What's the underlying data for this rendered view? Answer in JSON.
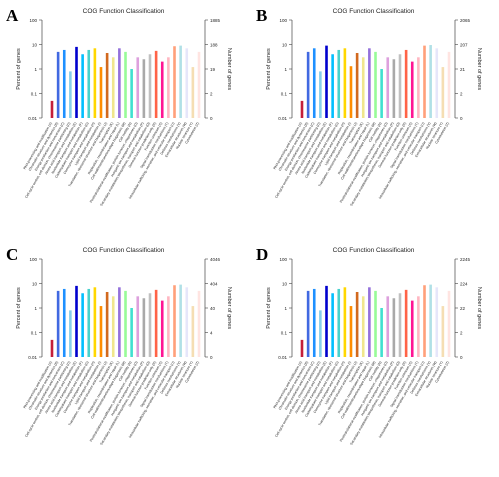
{
  "panels": [
    {
      "letter": "A"
    },
    {
      "letter": "B"
    },
    {
      "letter": "C"
    },
    {
      "letter": "D"
    }
  ],
  "chart_data": [
    {
      "type": "bar",
      "title": "COG Function Classification",
      "ylabel": "Percent of genes",
      "y2label": "Number of genes",
      "yscale": "log",
      "ylim": [
        0.01,
        100
      ],
      "yticks": [
        "0.01",
        "0.1",
        "1",
        "10",
        "100"
      ],
      "y2ticks": [
        "0",
        "2",
        "19",
        "188",
        "1885"
      ],
      "categories": [
        "RNA processing and modification (A)",
        "Chromatin structure and dynamics (B)",
        "Energy production and conversion (C)",
        "Cell cycle control, cell division, chromosome partitioning (D)",
        "Amino acid transport and metabolism (E)",
        "Nucleotide transport and metabolism (F)",
        "Carbohydrate transport and metabolism (G)",
        "Coenzyme transport and metabolism (H)",
        "Lipid transport and metabolism (I)",
        "Translation, ribosomal structure and biogenesis (J)",
        "Transcription (K)",
        "Replication, recombination and repair (L)",
        "Cell wall/membrane/envelope biogenesis (M)",
        "Cell motility (N)",
        "Posttranslational modification, protein turnover, chaperones (O)",
        "Inorganic ion transport and metabolism (P)",
        "Secondary metabolites biosynthesis, transport and catabolism (Q)",
        "General function prediction only (R)",
        "Function unknown (S)",
        "Signal transduction mechanisms (T)",
        "Intracellular trafficking, secretion, and vesicular transport (U)",
        "Defense mechanisms (V)",
        "Extracellular structures (W)",
        "Nuclear structure (Y)",
        "Cytoskeleton (Z)"
      ],
      "values": [
        0.05,
        5,
        6,
        0.8,
        8,
        4,
        6,
        7,
        1.2,
        4.5,
        3,
        7,
        5,
        1,
        3,
        2.5,
        4,
        5.5,
        2,
        3,
        8.5,
        9,
        7,
        1.2,
        5
      ]
    },
    {
      "type": "bar",
      "title": "COG Function Classification",
      "ylabel": "Percent of genes",
      "y2label": "Number of genes",
      "yscale": "log",
      "ylim": [
        0.01,
        100
      ],
      "yticks": [
        "0.01",
        "0.1",
        "1",
        "10",
        "100"
      ],
      "y2ticks": [
        "0",
        "2",
        "21",
        "207",
        "2065"
      ],
      "categories": [
        "RNA processing and modification (A)",
        "Chromatin structure and dynamics (B)",
        "Energy production and conversion (C)",
        "Cell cycle control, cell division, chromosome partitioning (D)",
        "Amino acid transport and metabolism (E)",
        "Nucleotide transport and metabolism (F)",
        "Carbohydrate transport and metabolism (G)",
        "Coenzyme transport and metabolism (H)",
        "Lipid transport and metabolism (I)",
        "Translation, ribosomal structure and biogenesis (J)",
        "Transcription (K)",
        "Replication, recombination and repair (L)",
        "Cell wall/membrane/envelope biogenesis (M)",
        "Cell motility (N)",
        "Posttranslational modification, protein turnover, chaperones (O)",
        "Inorganic ion transport and metabolism (P)",
        "Secondary metabolites biosynthesis, transport and catabolism (Q)",
        "General function prediction only (R)",
        "Function unknown (S)",
        "Signal transduction mechanisms (T)",
        "Intracellular trafficking, secretion, and vesicular transport (U)",
        "Defense mechanisms (V)",
        "Extracellular structures (W)",
        "Nuclear structure (Y)",
        "Cytoskeleton (Z)"
      ],
      "values": [
        0.05,
        5,
        7,
        0.8,
        9,
        4,
        6,
        7,
        1.3,
        4.5,
        3,
        7,
        5,
        1,
        3,
        2.5,
        4,
        6,
        2,
        3,
        9,
        9.5,
        7,
        1.2,
        5
      ]
    },
    {
      "type": "bar",
      "title": "COG Function Classification",
      "ylabel": "Percent of genes",
      "y2label": "Number of genes",
      "yscale": "log",
      "ylim": [
        0.01,
        100
      ],
      "yticks": [
        "0.01",
        "0.1",
        "1",
        "10",
        "100"
      ],
      "y2ticks": [
        "0",
        "4",
        "40",
        "404",
        "4046"
      ],
      "categories": [
        "RNA processing and modification (A)",
        "Chromatin structure and dynamics (B)",
        "Energy production and conversion (C)",
        "Cell cycle control, cell division, chromosome partitioning (D)",
        "Amino acid transport and metabolism (E)",
        "Nucleotide transport and metabolism (F)",
        "Carbohydrate transport and metabolism (G)",
        "Coenzyme transport and metabolism (H)",
        "Lipid transport and metabolism (I)",
        "Translation, ribosomal structure and biogenesis (J)",
        "Transcription (K)",
        "Replication, recombination and repair (L)",
        "Cell wall/membrane/envelope biogenesis (M)",
        "Cell motility (N)",
        "Posttranslational modification, protein turnover, chaperones (O)",
        "Inorganic ion transport and metabolism (P)",
        "Secondary metabolites biosynthesis, transport and catabolism (Q)",
        "General function prediction only (R)",
        "Function unknown (S)",
        "Signal transduction mechanisms (T)",
        "Intracellular trafficking, secretion, and vesicular transport (U)",
        "Defense mechanisms (V)",
        "Extracellular structures (W)",
        "Nuclear structure (Y)",
        "Cytoskeleton (Z)"
      ],
      "values": [
        0.05,
        5,
        6,
        0.8,
        8,
        4,
        6,
        7,
        1.2,
        4.5,
        3,
        7,
        5,
        1,
        3,
        2.5,
        4,
        5.5,
        2,
        3,
        8.5,
        9,
        7,
        1.2,
        5
      ]
    },
    {
      "type": "bar",
      "title": "COG Function Classification",
      "ylabel": "Percent of genes",
      "y2label": "Number of genes",
      "yscale": "log",
      "ylim": [
        0.01,
        100
      ],
      "yticks": [
        "0.01",
        "0.1",
        "1",
        "10",
        "100"
      ],
      "y2ticks": [
        "0",
        "2",
        "22",
        "224",
        "2245"
      ],
      "categories": [
        "RNA processing and modification (A)",
        "Chromatin structure and dynamics (B)",
        "Energy production and conversion (C)",
        "Cell cycle control, cell division, chromosome partitioning (D)",
        "Amino acid transport and metabolism (E)",
        "Nucleotide transport and metabolism (F)",
        "Carbohydrate transport and metabolism (G)",
        "Coenzyme transport and metabolism (H)",
        "Lipid transport and metabolism (I)",
        "Translation, ribosomal structure and biogenesis (J)",
        "Transcription (K)",
        "Replication, recombination and repair (L)",
        "Cell wall/membrane/envelope biogenesis (M)",
        "Cell motility (N)",
        "Posttranslational modification, protein turnover, chaperones (O)",
        "Inorganic ion transport and metabolism (P)",
        "Secondary metabolites biosynthesis, transport and catabolism (Q)",
        "General function prediction only (R)",
        "Function unknown (S)",
        "Signal transduction mechanisms (T)",
        "Intracellular trafficking, secretion, and vesicular transport (U)",
        "Defense mechanisms (V)",
        "Extracellular structures (W)",
        "Nuclear structure (Y)",
        "Cytoskeleton (Z)"
      ],
      "values": [
        0.05,
        5,
        6,
        0.8,
        8,
        4,
        6,
        7,
        1.2,
        4.5,
        3,
        7,
        5,
        1,
        3,
        2.5,
        4,
        5.5,
        2,
        3,
        8.5,
        9,
        7,
        1.2,
        5
      ]
    }
  ],
  "bar_colors": [
    "#c41e3a",
    "#4169e1",
    "#1e90ff",
    "#87ceeb",
    "#0000cd",
    "#00bfff",
    "#48d1cc",
    "#ffd700",
    "#ff8c00",
    "#d2691e",
    "#f0e68c",
    "#9370db",
    "#98fb98",
    "#40e0d0",
    "#dda0dd",
    "#a9a9a9",
    "#c0c0c0",
    "#ff6347",
    "#ff1493",
    "#ffb6c1",
    "#ffa07a",
    "#b0e0e6",
    "#e6e6fa",
    "#f5deb3",
    "#ffe4e1"
  ]
}
